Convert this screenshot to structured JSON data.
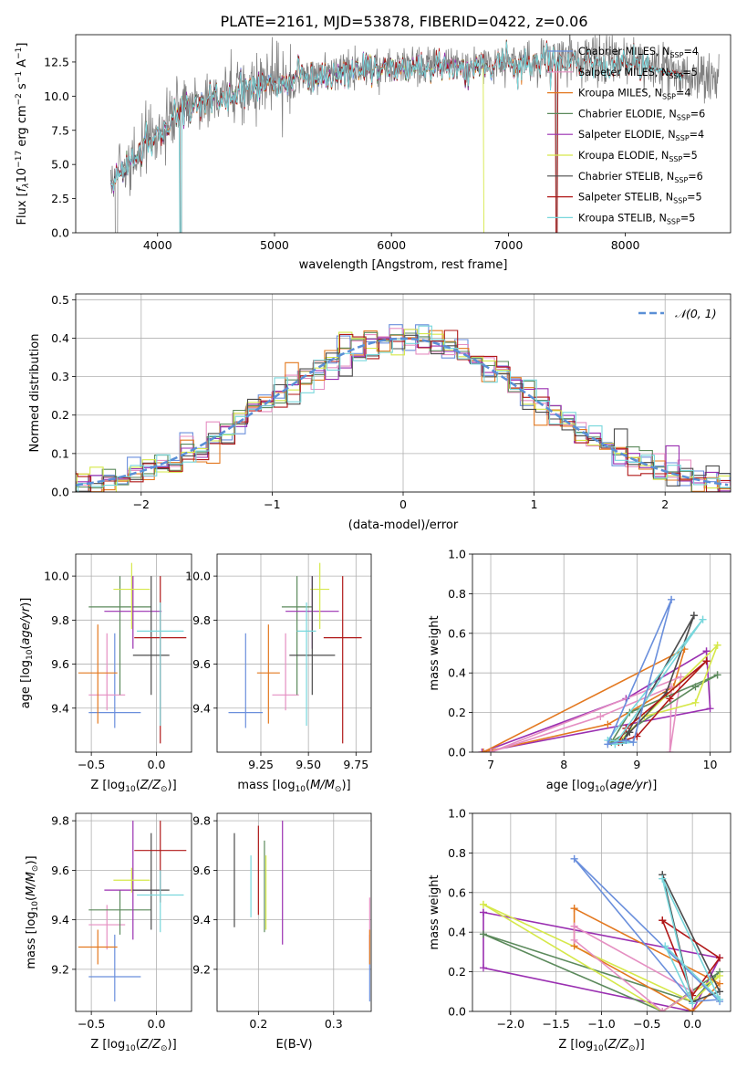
{
  "figure_title": "PLATE=2161, MJD=53878, FIBERID=0422, z=0.06",
  "colors": {
    "chabrier_miles": "#6a8fdc",
    "salpeter_miles": "#e58fc2",
    "kroupa_miles": "#e3781f",
    "chabrier_elodie": "#5c8a5c",
    "salpeter_elodie": "#9a2fb1",
    "kroupa_elodie": "#d6e84a",
    "chabrier_stelib": "#4c4c4c",
    "salpeter_stelib": "#b01818",
    "kroupa_stelib": "#78d7dc",
    "data": "#808080"
  },
  "chart_data": [
    {
      "id": "spectrum",
      "type": "line",
      "xlabel": "wavelength [Angstrom, rest frame]",
      "ylabel": "Flux [f_λ 10^-17 erg cm^-2 s^-1 A^-1]",
      "xlim": [
        3300,
        8900
      ],
      "ylim": [
        0,
        14.5
      ],
      "xticks": [
        "4000",
        "5000",
        "6000",
        "7000",
        "8000"
      ],
      "yticks": [
        "0.0",
        "2.5",
        "5.0",
        "7.5",
        "10.0",
        "12.5"
      ],
      "legend_position": "right",
      "continuum": {
        "x": [
          3600,
          3700,
          3800,
          3900,
          4000,
          4100,
          4200,
          4300,
          4500,
          4700,
          5000,
          5300,
          5600,
          6000,
          6400,
          6800,
          7200,
          7600,
          8000,
          8400,
          8800
        ],
        "y": [
          4.0,
          4.8,
          5.6,
          6.6,
          7.4,
          8.3,
          8.9,
          9.4,
          10.0,
          10.5,
          11.2,
          11.6,
          12.0,
          12.2,
          12.3,
          12.4,
          12.6,
          12.7,
          12.6,
          11.9,
          10.9
        ]
      },
      "series": [
        {
          "name": "Chabrier MILES, N_SSP=4",
          "color_key": "chabrier_miles"
        },
        {
          "name": "Salpeter MILES, N_SSP=5",
          "color_key": "salpeter_miles"
        },
        {
          "name": "Kroupa MILES, N_SSP=4",
          "color_key": "kroupa_miles"
        },
        {
          "name": "Chabrier ELODIE, N_SSP=6",
          "color_key": "chabrier_elodie"
        },
        {
          "name": "Salpeter ELODIE, N_SSP=4",
          "color_key": "salpeter_elodie"
        },
        {
          "name": "Kroupa ELODIE, N_SSP=5",
          "color_key": "kroupa_elodie"
        },
        {
          "name": "Chabrier STELIB, N_SSP=6",
          "color_key": "chabrier_stelib"
        },
        {
          "name": "Salpeter STELIB, N_SSP=5",
          "color_key": "salpeter_stelib"
        },
        {
          "name": "Kroupa STELIB, N_SSP=5",
          "color_key": "kroupa_stelib"
        }
      ]
    },
    {
      "id": "residuals",
      "type": "line",
      "xlabel": "(data-model)/error",
      "ylabel": "Normed distribution",
      "xlim": [
        -2.5,
        2.5
      ],
      "ylim": [
        0,
        0.515
      ],
      "xticks": [
        "−2",
        "−1",
        "0",
        "1",
        "2"
      ],
      "yticks": [
        "0.0",
        "0.1",
        "0.2",
        "0.3",
        "0.4",
        "0.5"
      ],
      "grid": true,
      "legend_position": "top-right",
      "legend_label": "𝒩(0, 1)",
      "bin_width": 0.1
    },
    {
      "id": "age_vs_Z",
      "type": "scatter",
      "xlabel": "Z [log10(Z/Z☉)]",
      "ylabel": "age  [log10(age/yr)]",
      "xlim": [
        -0.62,
        0.27
      ],
      "ylim": [
        9.2,
        10.1
      ],
      "xticks": [
        -0.5,
        0.0
      ],
      "xtick_labels": [
        "−0.5",
        "0.0"
      ],
      "yticks": [
        9.4,
        9.6,
        9.8,
        10.0
      ],
      "ytick_labels": [
        "9.4",
        "9.6",
        "9.8",
        "10.0"
      ],
      "grid": true,
      "points": [
        {
          "c": "chabrier_miles",
          "x": -0.32,
          "xe": 0.2,
          "y": 9.38,
          "ye": [
            0.07,
            0.36
          ]
        },
        {
          "c": "salpeter_miles",
          "x": -0.38,
          "xe": 0.14,
          "y": 9.46,
          "ye": [
            0.07,
            0.28
          ]
        },
        {
          "c": "kroupa_miles",
          "x": -0.45,
          "xe": 0.15,
          "y": 9.56,
          "ye": [
            0.23,
            0.22
          ]
        },
        {
          "c": "chabrier_elodie",
          "x": -0.28,
          "xe": 0.24,
          "y": 9.86,
          "ye": [
            0.4,
            0.14
          ]
        },
        {
          "c": "salpeter_elodie",
          "x": -0.18,
          "xe": 0.22,
          "y": 9.84,
          "ye": [
            0.17,
            0.16
          ]
        },
        {
          "c": "kroupa_elodie",
          "x": -0.19,
          "xe": 0.14,
          "y": 9.94,
          "ye": [
            0.18,
            0.12
          ]
        },
        {
          "c": "chabrier_stelib",
          "x": -0.04,
          "xe": 0.14,
          "y": 9.64,
          "ye": [
            0.18,
            0.36
          ]
        },
        {
          "c": "salpeter_stelib",
          "x": 0.03,
          "xe": 0.2,
          "y": 9.72,
          "ye": [
            0.48,
            0.28
          ]
        },
        {
          "c": "kroupa_stelib",
          "x": 0.03,
          "xe": 0.18,
          "y": 9.75,
          "ye": [
            0.43,
            0.13
          ]
        }
      ]
    },
    {
      "id": "age_vs_mass",
      "type": "scatter",
      "xlabel": "mass [log10(M/M☉)]",
      "ylabel": "",
      "xlim": [
        9.02,
        9.83
      ],
      "ylim": [
        9.2,
        10.1
      ],
      "xticks": [
        9.25,
        9.5,
        9.75
      ],
      "xtick_labels": [
        "9.25",
        "9.50",
        "9.75"
      ],
      "yticks": [
        9.4,
        9.6,
        9.8,
        10.0
      ],
      "ytick_labels": [
        "9.4",
        "9.6",
        "9.8",
        "10.0"
      ],
      "grid": true,
      "points": [
        {
          "c": "chabrier_miles",
          "x": 9.17,
          "xe": 0.09,
          "y": 9.38,
          "ye": [
            0.07,
            0.36
          ]
        },
        {
          "c": "salpeter_miles",
          "x": 9.38,
          "xe": 0.07,
          "y": 9.46,
          "ye": [
            0.07,
            0.28
          ]
        },
        {
          "c": "kroupa_miles",
          "x": 9.29,
          "xe": 0.06,
          "y": 9.56,
          "ye": [
            0.23,
            0.22
          ]
        },
        {
          "c": "chabrier_elodie",
          "x": 9.44,
          "xe": 0.08,
          "y": 9.86,
          "ye": [
            0.4,
            0.14
          ]
        },
        {
          "c": "salpeter_elodie",
          "x": 9.52,
          "xe": 0.14,
          "y": 9.84,
          "ye": [
            0.17,
            0.16
          ]
        },
        {
          "c": "kroupa_elodie",
          "x": 9.56,
          "xe": 0.05,
          "y": 9.94,
          "ye": [
            0.18,
            0.12
          ]
        },
        {
          "c": "chabrier_stelib",
          "x": 9.52,
          "xe": 0.12,
          "y": 9.64,
          "ye": [
            0.18,
            0.36
          ]
        },
        {
          "c": "salpeter_stelib",
          "x": 9.68,
          "xe": 0.1,
          "y": 9.72,
          "ye": [
            0.48,
            0.28
          ]
        },
        {
          "c": "kroupa_stelib",
          "x": 9.49,
          "xe": 0.05,
          "y": 9.75,
          "ye": [
            0.43,
            0.13
          ]
        }
      ]
    },
    {
      "id": "weight_vs_age",
      "type": "line",
      "xlabel": "age  [log10(age/yr)]",
      "ylabel": "mass weight",
      "xlim": [
        6.75,
        10.28
      ],
      "ylim": [
        0.0,
        1.0
      ],
      "xticks": [
        7,
        8,
        9,
        10
      ],
      "xtick_labels": [
        "7",
        "8",
        "9",
        "10"
      ],
      "yticks": [
        0.0,
        0.2,
        0.4,
        0.6,
        0.8,
        1.0
      ],
      "ytick_labels": [
        "0.0",
        "0.2",
        "0.4",
        "0.6",
        "0.8",
        "1.0"
      ],
      "grid": true,
      "series": [
        {
          "c": "salpeter_elodie",
          "x": [
            9.95,
            10.0,
            6.88,
            8.85,
            9.95
          ],
          "y": [
            0.51,
            0.22,
            0.0,
            0.27,
            0.51
          ]
        },
        {
          "c": "kroupa_miles",
          "x": [
            6.9,
            9.65,
            9.5,
            8.6,
            6.9
          ],
          "y": [
            0.0,
            0.52,
            0.33,
            0.14,
            0.0
          ]
        },
        {
          "c": "salpeter_miles",
          "x": [
            7.0,
            9.6,
            9.45,
            9.47,
            8.5,
            7.0
          ],
          "y": [
            0.0,
            0.38,
            0.0,
            0.33,
            0.18,
            0.0
          ]
        },
        {
          "c": "chabrier_elodie",
          "x": [
            10.1,
            9.8,
            8.65,
            8.9,
            10.1
          ],
          "y": [
            0.39,
            0.33,
            0.05,
            0.2,
            0.39
          ]
        },
        {
          "c": "kroupa_elodie",
          "x": [
            10.1,
            9.8,
            9.1,
            8.75,
            10.1
          ],
          "y": [
            0.54,
            0.25,
            0.18,
            0.05,
            0.54
          ]
        },
        {
          "c": "chabrier_stelib",
          "x": [
            9.78,
            9.4,
            8.9,
            8.8,
            9.78
          ],
          "y": [
            0.69,
            0.3,
            0.1,
            0.05,
            0.69
          ]
        },
        {
          "c": "salpeter_stelib",
          "x": [
            9.95,
            9.45,
            9.0,
            8.75,
            8.85,
            9.95
          ],
          "y": [
            0.46,
            0.27,
            0.08,
            0.05,
            0.12,
            0.46
          ]
        },
        {
          "c": "kroupa_stelib",
          "x": [
            9.9,
            8.7,
            8.95,
            8.6,
            9.9
          ],
          "y": [
            0.67,
            0.04,
            0.05,
            0.06,
            0.67
          ]
        },
        {
          "c": "chabrier_miles",
          "x": [
            9.47,
            8.95,
            8.85,
            8.6,
            9.47
          ],
          "y": [
            0.77,
            0.05,
            0.06,
            0.04,
            0.77
          ]
        }
      ]
    },
    {
      "id": "mass_vs_Z",
      "type": "scatter",
      "xlabel": "Z [log10(Z/Z☉)]",
      "ylabel": "mass [log10(M/M☉)]",
      "xlim": [
        -0.62,
        0.27
      ],
      "ylim": [
        9.03,
        9.83
      ],
      "xticks": [
        -0.5,
        0.0
      ],
      "xtick_labels": [
        "−0.5",
        "0.0"
      ],
      "yticks": [
        9.2,
        9.4,
        9.6,
        9.8
      ],
      "ytick_labels": [
        "9.2",
        "9.4",
        "9.6",
        "9.8"
      ],
      "grid": true,
      "points": [
        {
          "c": "chabrier_miles",
          "x": -0.32,
          "xe": 0.2,
          "y": 9.17,
          "ye": [
            0.1,
            0.17
          ]
        },
        {
          "c": "salpeter_miles",
          "x": -0.38,
          "xe": 0.14,
          "y": 9.38,
          "ye": [
            0.1,
            0.08
          ]
        },
        {
          "c": "kroupa_miles",
          "x": -0.45,
          "xe": 0.15,
          "y": 9.29,
          "ye": [
            0.07,
            0.07
          ]
        },
        {
          "c": "chabrier_elodie",
          "x": -0.28,
          "xe": 0.24,
          "y": 9.44,
          "ye": [
            0.1,
            0.08
          ]
        },
        {
          "c": "salpeter_elodie",
          "x": -0.18,
          "xe": 0.22,
          "y": 9.52,
          "ye": [
            0.2,
            0.28
          ]
        },
        {
          "c": "kroupa_elodie",
          "x": -0.19,
          "xe": 0.14,
          "y": 9.56,
          "ye": [
            0.05,
            0.05
          ]
        },
        {
          "c": "chabrier_stelib",
          "x": -0.04,
          "xe": 0.14,
          "y": 9.52,
          "ye": [
            0.16,
            0.23
          ]
        },
        {
          "c": "salpeter_stelib",
          "x": 0.03,
          "xe": 0.2,
          "y": 9.68,
          "ye": [
            0.21,
            0.12
          ]
        },
        {
          "c": "kroupa_stelib",
          "x": 0.03,
          "xe": 0.18,
          "y": 9.5,
          "ye": [
            0.15,
            0.1
          ]
        }
      ]
    },
    {
      "id": "mass_vs_ebv",
      "type": "scatter",
      "xlabel": "E(B-V)",
      "ylabel": "",
      "xlim": [
        0.145,
        0.35
      ],
      "ylim": [
        9.03,
        9.83
      ],
      "xticks": [
        0.2,
        0.3
      ],
      "xtick_labels": [
        "0.2",
        "0.3"
      ],
      "yticks": [
        9.2,
        9.4,
        9.6,
        9.8
      ],
      "ytick_labels": [
        "9.2",
        "9.4",
        "9.6",
        "9.8"
      ],
      "grid": true,
      "points": [
        {
          "c": "chabrier_miles",
          "x": 0.348,
          "xe": 0.0,
          "y": 9.17,
          "ye": [
            0.1,
            0.17
          ]
        },
        {
          "c": "salpeter_miles",
          "x": 0.348,
          "xe": 0.0,
          "y": 9.38,
          "ye": [
            0.1,
            0.11
          ]
        },
        {
          "c": "kroupa_miles",
          "x": 0.348,
          "xe": 0.0,
          "y": 9.29,
          "ye": [
            0.07,
            0.07
          ]
        },
        {
          "c": "chabrier_elodie",
          "x": 0.208,
          "xe": 0.0,
          "y": 9.52,
          "ye": [
            0.17,
            0.2
          ]
        },
        {
          "c": "salpeter_elodie",
          "x": 0.232,
          "xe": 0.0,
          "y": 9.55,
          "ye": [
            0.25,
            0.25
          ]
        },
        {
          "c": "kroupa_elodie",
          "x": 0.21,
          "xe": 0.0,
          "y": 9.56,
          "ye": [
            0.2,
            0.1
          ]
        },
        {
          "c": "chabrier_stelib",
          "x": 0.168,
          "xe": 0.0,
          "y": 9.55,
          "ye": [
            0.18,
            0.2
          ]
        },
        {
          "c": "salpeter_stelib",
          "x": 0.2,
          "xe": 0.0,
          "y": 9.6,
          "ye": [
            0.18,
            0.18
          ]
        },
        {
          "c": "kroupa_stelib",
          "x": 0.19,
          "xe": 0.0,
          "y": 9.56,
          "ye": [
            0.15,
            0.1
          ]
        }
      ]
    },
    {
      "id": "weight_vs_Z",
      "type": "line",
      "xlabel": "Z [log10(Z/Z☉)]",
      "ylabel": "mass weight",
      "xlim": [
        -2.42,
        0.42
      ],
      "ylim": [
        0.0,
        1.0
      ],
      "xticks": [
        -2.0,
        -1.5,
        -1.0,
        -0.5,
        0.0
      ],
      "xtick_labels": [
        "−2.0",
        "−1.5",
        "−1.0",
        "−0.5",
        "0.0"
      ],
      "yticks": [
        0.0,
        0.2,
        0.4,
        0.6,
        0.8,
        1.0
      ],
      "ytick_labels": [
        "0.0",
        "0.2",
        "0.4",
        "0.6",
        "0.8",
        "1.0"
      ],
      "grid": true,
      "series": [
        {
          "c": "salpeter_elodie",
          "x": [
            -2.3,
            -2.3,
            0.0,
            0.3,
            -2.3
          ],
          "y": [
            0.5,
            0.22,
            0.0,
            0.27,
            0.5
          ]
        },
        {
          "c": "chabrier_elodie",
          "x": [
            -2.3,
            -0.33,
            0.3,
            0.0,
            -2.3
          ],
          "y": [
            0.39,
            0.0,
            0.2,
            0.05,
            0.39
          ]
        },
        {
          "c": "kroupa_elodie",
          "x": [
            -2.3,
            -0.33,
            0.3,
            0.0,
            -2.3
          ],
          "y": [
            0.54,
            0.0,
            0.18,
            0.05,
            0.54
          ]
        },
        {
          "c": "kroupa_miles",
          "x": [
            -1.3,
            -1.3,
            0.0,
            0.3,
            -1.3
          ],
          "y": [
            0.52,
            0.33,
            0.0,
            0.14,
            0.52
          ]
        },
        {
          "c": "salpeter_miles",
          "x": [
            -1.3,
            -1.3,
            -0.33,
            0.0,
            -1.3
          ],
          "y": [
            0.43,
            0.36,
            0.0,
            0.1,
            0.43
          ]
        },
        {
          "c": "chabrier_miles",
          "x": [
            -1.3,
            0.0,
            0.3,
            0.3,
            -1.3
          ],
          "y": [
            0.77,
            0.05,
            0.06,
            0.05,
            0.77
          ]
        },
        {
          "c": "chabrier_stelib",
          "x": [
            -0.33,
            0.0,
            0.3,
            -0.33
          ],
          "y": [
            0.69,
            0.05,
            0.1,
            0.69
          ]
        },
        {
          "c": "salpeter_stelib",
          "x": [
            -0.33,
            0.0,
            0.3,
            -0.33
          ],
          "y": [
            0.46,
            0.08,
            0.27,
            0.46
          ]
        },
        {
          "c": "kroupa_stelib",
          "x": [
            -0.33,
            0.0,
            -0.3,
            0.3,
            -0.33
          ],
          "y": [
            0.67,
            0.04,
            0.33,
            0.06,
            0.67
          ]
        }
      ]
    }
  ]
}
